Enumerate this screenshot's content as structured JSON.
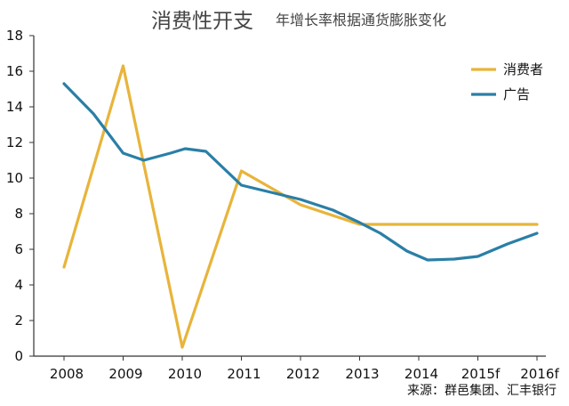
{
  "header": {
    "title": "消费性开支",
    "subtitle": "年增长率根据通货膨胀变化"
  },
  "source": "来源：群邑集团、汇丰银行",
  "chart_data": {
    "type": "line",
    "categories": [
      "2008",
      "2009",
      "2010",
      "2011",
      "2012",
      "2013",
      "2014",
      "2015f",
      "2016f"
    ],
    "ylim": [
      0,
      18
    ],
    "yticks": [
      0,
      2,
      4,
      6,
      8,
      10,
      12,
      14,
      16,
      18
    ],
    "grid": false,
    "legend_position": "top-right",
    "series": [
      {
        "name": "消费者",
        "color": "#E8B43A",
        "points": [
          [
            0,
            5.0
          ],
          [
            1,
            16.3
          ],
          [
            2,
            0.5
          ],
          [
            3,
            10.4
          ],
          [
            4,
            8.5
          ],
          [
            5,
            7.4
          ],
          [
            6,
            7.4
          ],
          [
            7,
            7.4
          ],
          [
            8,
            7.4
          ]
        ]
      },
      {
        "name": "广告",
        "color": "#2A7FA6",
        "points": [
          [
            0,
            15.3
          ],
          [
            0.5,
            13.6
          ],
          [
            1,
            11.4
          ],
          [
            1.35,
            11.0
          ],
          [
            1.8,
            11.4
          ],
          [
            2.05,
            11.65
          ],
          [
            2.4,
            11.5
          ],
          [
            3,
            9.6
          ],
          [
            4,
            8.8
          ],
          [
            4.55,
            8.2
          ],
          [
            5,
            7.5
          ],
          [
            5.35,
            6.9
          ],
          [
            5.8,
            5.9
          ],
          [
            6.15,
            5.4
          ],
          [
            6.6,
            5.45
          ],
          [
            7,
            5.6
          ],
          [
            7.5,
            6.3
          ],
          [
            8,
            6.9
          ]
        ]
      }
    ]
  }
}
